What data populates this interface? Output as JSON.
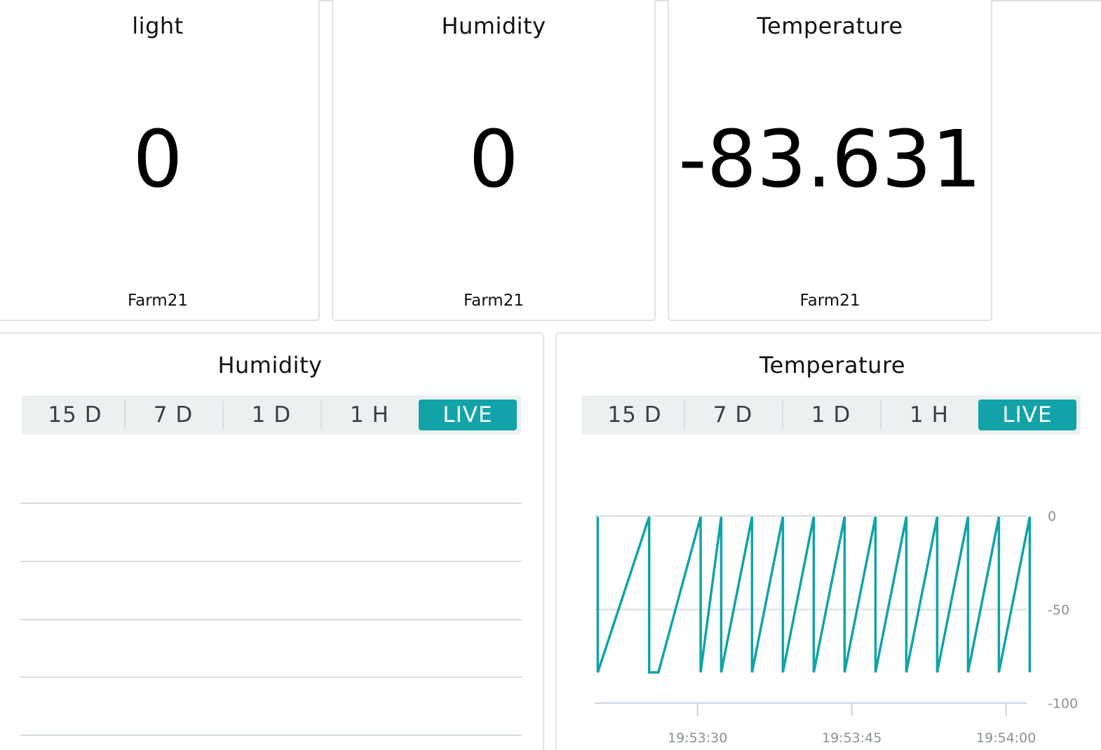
{
  "value_widgets": [
    {
      "title": "light",
      "value": "0",
      "device": "Farm21"
    },
    {
      "title": "Humidity",
      "value": "0",
      "device": "Farm21"
    },
    {
      "title": "Temperature",
      "value": "-83.631",
      "device": "Farm21"
    }
  ],
  "chart_widgets": [
    {
      "title": "Humidity",
      "range_tabs": [
        "15 D",
        "7 D",
        "1 D",
        "1 H",
        "LIVE"
      ],
      "active_tab": "LIVE"
    },
    {
      "title": "Temperature",
      "range_tabs": [
        "15 D",
        "7 D",
        "1 D",
        "1 H",
        "LIVE"
      ],
      "active_tab": "LIVE"
    }
  ],
  "colors": {
    "accent": "#11a3a8",
    "border": "#dfe4e5",
    "grid": "#d5dedf",
    "axis_text": "#8a9193",
    "tab_bg": "#ecf0f1"
  },
  "chart_data": [
    {
      "type": "line",
      "title": "Humidity",
      "series": [],
      "grid": true,
      "xlabel": "",
      "ylabel": ""
    },
    {
      "type": "line",
      "title": "Temperature",
      "xlabel": "",
      "ylabel": "",
      "ylim": [
        -100,
        0
      ],
      "y_ticks": [
        "0",
        "-50",
        "-100"
      ],
      "x_ticks": [
        "19:53:30",
        "19:53:45",
        "19:54:00"
      ],
      "x_range": [
        "19:53:20",
        "19:54:02"
      ],
      "grid": true,
      "series": [
        {
          "color": "#11a3a8",
          "points": [
            [
              "19:53:20.3",
              -0.5
            ],
            [
              "19:53:20.3",
              -83.6
            ],
            [
              "19:53:25.3",
              -0.5
            ],
            [
              "19:53:25.3",
              -83.6
            ],
            [
              "19:53:26.2",
              -83.6
            ],
            [
              "19:53:30.3",
              -0.5
            ],
            [
              "19:53:30.3",
              -83.6
            ],
            [
              "19:53:32.3",
              -0.5
            ],
            [
              "19:53:32.3",
              -83.6
            ],
            [
              "19:53:35.3",
              -0.5
            ],
            [
              "19:53:35.3",
              -83.6
            ],
            [
              "19:53:38.3",
              -0.5
            ],
            [
              "19:53:38.3",
              -83.6
            ],
            [
              "19:53:41.3",
              -0.5
            ],
            [
              "19:53:41.3",
              -83.6
            ],
            [
              "19:53:44.3",
              -0.5
            ],
            [
              "19:53:44.3",
              -83.6
            ],
            [
              "19:53:47.3",
              -0.5
            ],
            [
              "19:53:47.3",
              -83.6
            ],
            [
              "19:53:50.3",
              -0.5
            ],
            [
              "19:53:50.3",
              -83.6
            ],
            [
              "19:53:53.3",
              -0.5
            ],
            [
              "19:53:53.3",
              -83.6
            ],
            [
              "19:53:56.3",
              -0.5
            ],
            [
              "19:53:56.3",
              -83.6
            ],
            [
              "19:53:59.3",
              -0.5
            ],
            [
              "19:53:59.3",
              -83.6
            ],
            [
              "19:54:02.3",
              -0.5
            ],
            [
              "19:54:02.3",
              -83.6
            ]
          ]
        }
      ]
    }
  ]
}
